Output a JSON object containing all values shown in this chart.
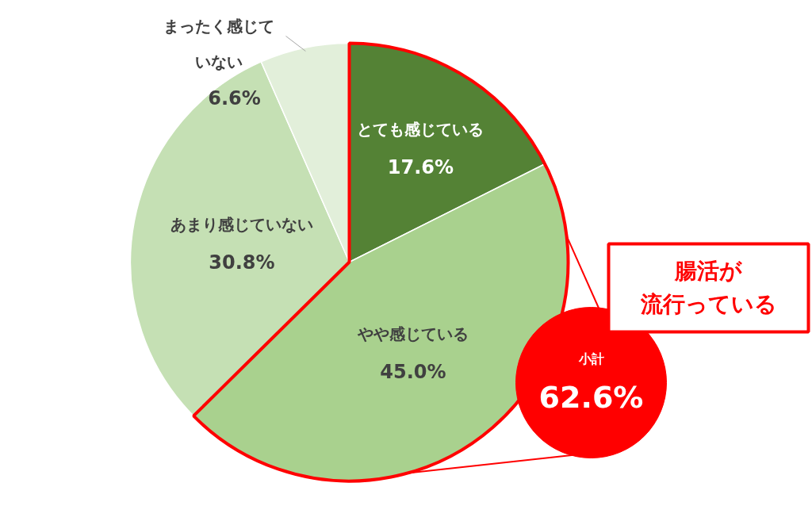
{
  "chart_data": {
    "type": "pie",
    "categories": [
      "とても感じている",
      "やや感じている",
      "あまり感じていない",
      "まったく感じていない"
    ],
    "values": [
      17.6,
      45.0,
      30.8,
      6.6
    ],
    "value_labels": [
      "17.6%",
      "45.0%",
      "30.8%",
      "6.6%"
    ],
    "colors": [
      "#548235",
      "#a9d18e",
      "#c5e0b4",
      "#e2efda"
    ],
    "annotations": [
      "小計",
      "62.6%",
      "腸活が流行っている"
    ]
  }
}
